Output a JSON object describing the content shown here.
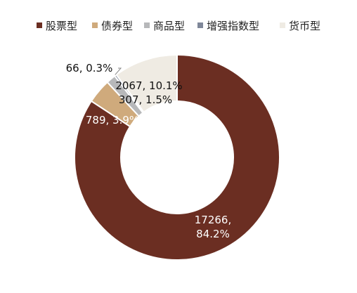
{
  "chart_data": {
    "type": "pie",
    "subtype": "donut",
    "title": "",
    "legend_position": "top",
    "categories": [
      "股票型",
      "债券型",
      "商品型",
      "增强指数型",
      "货币型"
    ],
    "values": [
      17266,
      789,
      307,
      66,
      2067
    ],
    "percents": [
      "84.2%",
      "3.9%",
      "1.5%",
      "0.3%",
      "10.1%"
    ],
    "colors": [
      "#6B2E22",
      "#CFAA7C",
      "#B7B8BA",
      "#7F8799",
      "#EFEBE3"
    ],
    "slice_labels": [
      {
        "lines": [
          "17266,",
          "84.2%"
        ],
        "color": "#ffffff"
      },
      {
        "lines": [
          "789, 3.9%"
        ],
        "color": "#ffffff"
      },
      {
        "lines": [
          "307, 1.5%"
        ],
        "color": "#111111"
      },
      {
        "lines": [
          "66, 0.3%"
        ],
        "color": "#111111"
      },
      {
        "lines": [
          "2067, 10.1%"
        ],
        "color": "#111111"
      }
    ]
  }
}
